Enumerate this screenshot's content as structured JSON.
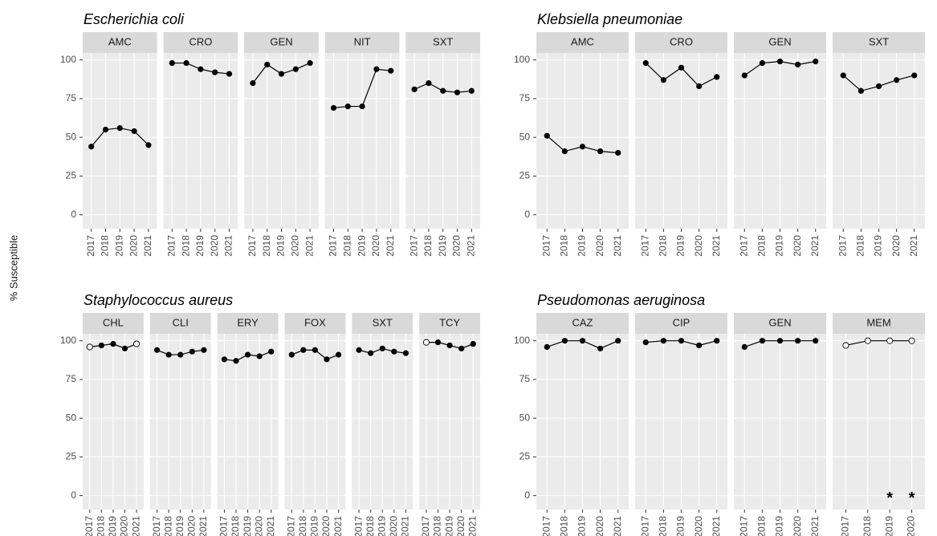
{
  "y_label": "% Susceptible",
  "chart_data": [
    {
      "type": "line",
      "title": "Escherichia coli",
      "ylim": [
        -9,
        104.5
      ],
      "yticks": [
        0,
        25,
        50,
        75,
        100
      ],
      "grid": true,
      "color": "#000000",
      "facets": [
        {
          "name": "AMC",
          "categories": [
            "2017",
            "2018",
            "2019",
            "2020",
            "2021"
          ],
          "values": [
            44,
            55,
            56,
            54,
            45
          ],
          "hollow": [
            false,
            false,
            false,
            false,
            false
          ]
        },
        {
          "name": "CRO",
          "categories": [
            "2017",
            "2018",
            "2019",
            "2020",
            "2021"
          ],
          "values": [
            98,
            98,
            94,
            92,
            91
          ],
          "hollow": [
            false,
            false,
            false,
            false,
            false
          ]
        },
        {
          "name": "GEN",
          "categories": [
            "2017",
            "2018",
            "2019",
            "2020",
            "2021"
          ],
          "values": [
            85,
            97,
            91,
            94,
            98
          ],
          "hollow": [
            false,
            false,
            false,
            false,
            false
          ]
        },
        {
          "name": "NIT",
          "categories": [
            "2017",
            "2018",
            "2019",
            "2020",
            "2021"
          ],
          "values": [
            69,
            70,
            70,
            94,
            93
          ],
          "hollow": [
            false,
            false,
            false,
            false,
            false
          ]
        },
        {
          "name": "SXT",
          "categories": [
            "2017",
            "2018",
            "2019",
            "2020",
            "2021"
          ],
          "values": [
            81,
            85,
            80,
            79,
            80
          ],
          "hollow": [
            false,
            false,
            false,
            false,
            false
          ]
        }
      ]
    },
    {
      "type": "line",
      "title": "Klebsiella pneumoniae",
      "ylim": [
        -9,
        104.5
      ],
      "yticks": [
        0,
        25,
        50,
        75,
        100
      ],
      "grid": true,
      "color": "#000000",
      "facets": [
        {
          "name": "AMC",
          "categories": [
            "2017",
            "2018",
            "2019",
            "2020",
            "2021"
          ],
          "values": [
            51,
            41,
            44,
            41,
            40
          ],
          "hollow": [
            false,
            false,
            false,
            false,
            false
          ]
        },
        {
          "name": "CRO",
          "categories": [
            "2017",
            "2018",
            "2019",
            "2020",
            "2021"
          ],
          "values": [
            98,
            87,
            95,
            83,
            89
          ],
          "hollow": [
            false,
            false,
            false,
            false,
            false
          ]
        },
        {
          "name": "GEN",
          "categories": [
            "2017",
            "2018",
            "2019",
            "2020",
            "2021"
          ],
          "values": [
            90,
            98,
            99,
            97,
            99
          ],
          "hollow": [
            false,
            false,
            false,
            false,
            false
          ]
        },
        {
          "name": "SXT",
          "categories": [
            "2017",
            "2018",
            "2019",
            "2020",
            "2021"
          ],
          "values": [
            90,
            80,
            83,
            87,
            90
          ],
          "hollow": [
            false,
            false,
            false,
            false,
            false
          ]
        }
      ]
    },
    {
      "type": "line",
      "title": "Staphylococcus aureus",
      "ylim": [
        -9,
        104.5
      ],
      "yticks": [
        0,
        25,
        50,
        75,
        100
      ],
      "grid": true,
      "color": "#000000",
      "facets": [
        {
          "name": "CHL",
          "categories": [
            "2017",
            "2018",
            "2019",
            "2020",
            "2021"
          ],
          "values": [
            96,
            97,
            98,
            95,
            98
          ],
          "hollow": [
            true,
            false,
            false,
            false,
            true
          ]
        },
        {
          "name": "CLI",
          "categories": [
            "2017",
            "2018",
            "2019",
            "2020",
            "2021"
          ],
          "values": [
            94,
            91,
            91,
            93,
            94
          ],
          "hollow": [
            false,
            false,
            false,
            false,
            false
          ]
        },
        {
          "name": "ERY",
          "categories": [
            "2017",
            "2018",
            "2019",
            "2020",
            "2021"
          ],
          "values": [
            88,
            87,
            91,
            90,
            93
          ],
          "hollow": [
            false,
            false,
            false,
            false,
            false
          ]
        },
        {
          "name": "FOX",
          "categories": [
            "2017",
            "2018",
            "2019",
            "2020",
            "2021"
          ],
          "values": [
            91,
            94,
            94,
            88,
            91
          ],
          "hollow": [
            false,
            false,
            false,
            false,
            false
          ]
        },
        {
          "name": "SXT",
          "categories": [
            "2017",
            "2018",
            "2019",
            "2020",
            "2021"
          ],
          "values": [
            94,
            92,
            95,
            93,
            92
          ],
          "hollow": [
            false,
            false,
            false,
            false,
            false
          ]
        },
        {
          "name": "TCY",
          "categories": [
            "2017",
            "2018",
            "2019",
            "2020",
            "2021"
          ],
          "values": [
            99,
            99,
            97,
            95,
            98
          ],
          "hollow": [
            true,
            false,
            false,
            false,
            false
          ]
        }
      ]
    },
    {
      "type": "line",
      "title": "Pseudomonas aeruginosa",
      "ylim": [
        -9,
        104.5
      ],
      "yticks": [
        0,
        25,
        50,
        75,
        100
      ],
      "grid": true,
      "color": "#000000",
      "facets": [
        {
          "name": "CAZ",
          "categories": [
            "2017",
            "2018",
            "2019",
            "2020",
            "2021"
          ],
          "values": [
            96,
            100,
            100,
            95,
            100
          ],
          "hollow": [
            false,
            false,
            false,
            false,
            false
          ]
        },
        {
          "name": "CIP",
          "categories": [
            "2017",
            "2018",
            "2019",
            "2020",
            "2021"
          ],
          "values": [
            99,
            100,
            100,
            97,
            100
          ],
          "hollow": [
            false,
            false,
            false,
            false,
            false
          ]
        },
        {
          "name": "GEN",
          "categories": [
            "2017",
            "2018",
            "2019",
            "2020",
            "2021"
          ],
          "values": [
            96,
            100,
            100,
            100,
            100
          ],
          "hollow": [
            false,
            false,
            false,
            false,
            false
          ]
        },
        {
          "name": "MEM",
          "categories": [
            "2017",
            "2018",
            "2019",
            "2020"
          ],
          "values": [
            97,
            100,
            100,
            100
          ],
          "hollow": [
            true,
            true,
            true,
            true
          ],
          "annotations": [
            {
              "x": "2019",
              "y": 0,
              "label": "*"
            },
            {
              "x": "2020",
              "y": 0,
              "label": "*"
            }
          ]
        }
      ]
    }
  ]
}
